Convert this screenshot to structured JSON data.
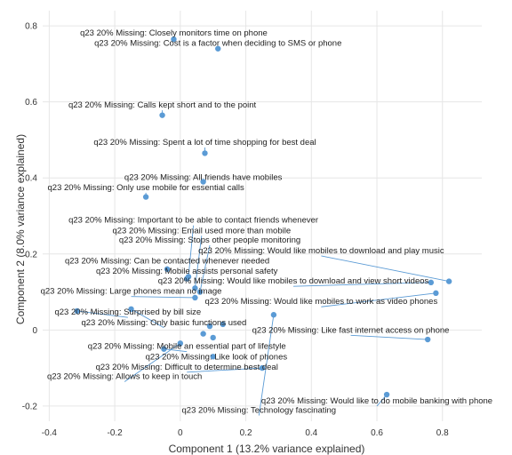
{
  "chart_data": {
    "type": "scatter",
    "xlabel": "Component 1 (13.2% variance explained)",
    "ylabel": "Component 2 (8.0% variance explained)",
    "xlim": [
      -0.42,
      0.92
    ],
    "ylim": [
      -0.24,
      0.84
    ],
    "xticks": [
      -0.4,
      -0.2,
      0,
      0.2,
      0.4,
      0.6,
      0.8
    ],
    "xtick_labels": [
      "-0.4",
      "-0.2",
      "0",
      "0.2",
      "0.4",
      "0.6",
      "0.8"
    ],
    "yticks": [
      -0.2,
      0,
      0.2,
      0.4,
      0.6,
      0.8
    ],
    "ytick_labels": [
      "-0.2",
      "0",
      "0.2",
      "0.4",
      "0.6",
      "0.8"
    ],
    "grid": true,
    "color": "#5b9bd5",
    "points": [
      {
        "label": "q23 20% Missing: Closely monitors time on phone",
        "x": -0.02,
        "y": 0.765,
        "lx": -0.02,
        "ly": 0.775
      },
      {
        "label": "q23 20% Missing: Cost is a factor when deciding to SMS or phone",
        "x": 0.115,
        "y": 0.74,
        "lx": 0.115,
        "ly": 0.748
      },
      {
        "label": "q23 20% Missing: Calls kept short and to the point",
        "x": -0.055,
        "y": 0.565,
        "lx": -0.055,
        "ly": 0.585
      },
      {
        "label": "q23 20% Missing: Spent a lot of time shopping for best deal",
        "x": 0.075,
        "y": 0.465,
        "lx": 0.075,
        "ly": 0.487
      },
      {
        "label": "q23 20% Missing: All friends have mobiles",
        "x": 0.07,
        "y": 0.39,
        "lx": 0.07,
        "ly": 0.395
      },
      {
        "label": "q23 20% Missing: Only use mobile for essential calls",
        "x": -0.105,
        "y": 0.35,
        "lx": -0.105,
        "ly": 0.368
      },
      {
        "label": "q23 20% Missing: Important to be able to contact friends whenever",
        "x": 0.025,
        "y": 0.14,
        "lx": 0.04,
        "ly": 0.282
      },
      {
        "label": "q23 20% Missing: Email used more than mobile",
        "x": 0.045,
        "y": 0.11,
        "lx": 0.065,
        "ly": 0.255
      },
      {
        "label": "q23 20% Missing: Stops other people monitoring",
        "x": 0.06,
        "y": 0.1,
        "lx": 0.09,
        "ly": 0.23
      },
      {
        "label": "q23 20% Missing: Would like mobiles to download and play music",
        "x": 0.82,
        "y": 0.128,
        "lx": 0.43,
        "ly": 0.202
      },
      {
        "label": "q23 20% Missing: Can be contacted whenever needed",
        "x": -0.04,
        "y": 0.16,
        "lx": -0.04,
        "ly": 0.175
      },
      {
        "label": "q23 20% Missing: Mobile assists personal safety",
        "x": 0.02,
        "y": 0.135,
        "lx": 0.02,
        "ly": 0.148
      },
      {
        "label": "q23 20% Missing: Would like mobiles to download and view short videos",
        "x": 0.765,
        "y": 0.125,
        "lx": 0.345,
        "ly": 0.122
      },
      {
        "label": "q23 20% Missing: Large phones mean no image",
        "x": 0.045,
        "y": 0.085,
        "lx": -0.15,
        "ly": 0.095
      },
      {
        "label": "q23 20% Missing: Would like mobiles to work as video phones",
        "x": 0.78,
        "y": 0.097,
        "lx": 0.43,
        "ly": 0.068
      },
      {
        "label": "q23 20% Missing: Surprised by bill size",
        "x": -0.315,
        "y": 0.05,
        "lx": -0.16,
        "ly": 0.04
      },
      {
        "label": "q23 20% Missing: Only basic functions used",
        "x": -0.15,
        "y": 0.055,
        "lx": -0.05,
        "ly": 0.013
      },
      {
        "label": "q23 20% Missing: Like fast internet access on phone",
        "x": 0.755,
        "y": -0.025,
        "lx": 0.52,
        "ly": -0.007
      },
      {
        "label": "q23 20% Missing: Mobile an essential part of lifestyle",
        "x": -0.05,
        "y": -0.05,
        "lx": 0.02,
        "ly": -0.05
      },
      {
        "label": "q23 20% Missing: Like look of phones",
        "x": 0.1,
        "y": -0.07,
        "lx": 0.11,
        "ly": -0.077
      },
      {
        "label": "q23 20% Missing: Difficult to determine best deal",
        "x": 0.25,
        "y": -0.1,
        "lx": 0.02,
        "ly": -0.104
      },
      {
        "label": "q23 20% Missing: Allows to keep in touch",
        "x": 0,
        "y": -0.035,
        "lx": -0.17,
        "ly": -0.129
      },
      {
        "label": "q23 20% Missing: Would like to do mobile banking with phone",
        "x": 0.63,
        "y": -0.17,
        "lx": 0.6,
        "ly": -0.193
      },
      {
        "label": "q23 20% Missing: Technology fascinating",
        "x": 0.285,
        "y": 0.04,
        "lx": 0.24,
        "ly": -0.218
      },
      {
        "label": "",
        "x": 0.09,
        "y": 0.01,
        "lx": 0.09,
        "ly": 0.01
      },
      {
        "label": "",
        "x": 0.07,
        "y": -0.01,
        "lx": 0.07,
        "ly": -0.01
      },
      {
        "label": "",
        "x": 0.1,
        "y": -0.02,
        "lx": 0.1,
        "ly": -0.02
      },
      {
        "label": "",
        "x": 0.13,
        "y": 0.015,
        "lx": 0.13,
        "ly": 0.015
      }
    ]
  }
}
